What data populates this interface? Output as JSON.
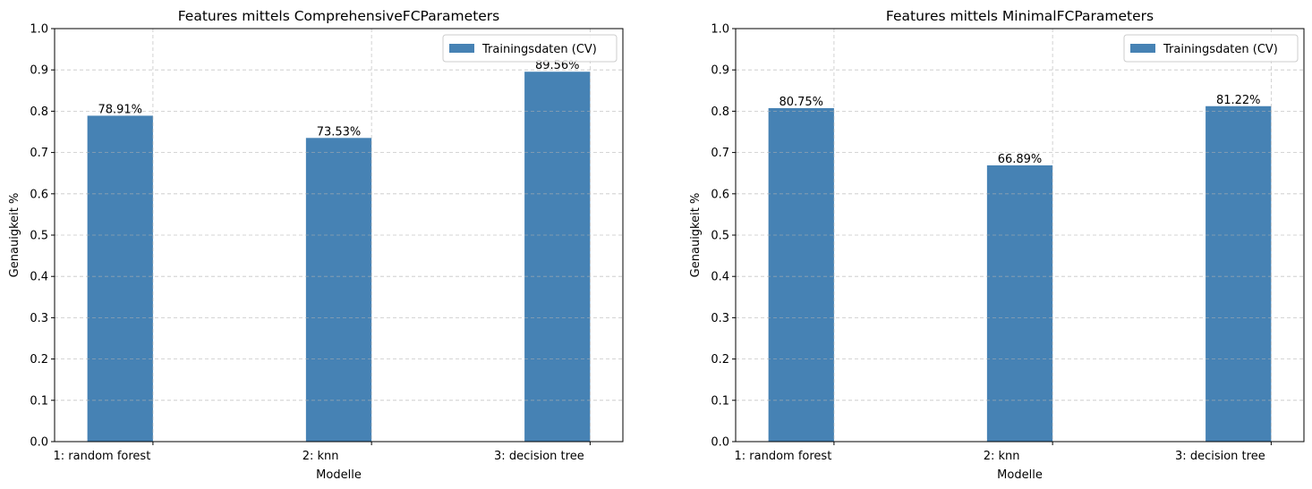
{
  "chart_data": [
    {
      "type": "bar",
      "title": "Features mittels ComprehensiveFCParameters",
      "xlabel": "Modelle",
      "ylabel": "Genauigkeit %",
      "categories": [
        "1: random forest",
        "2: knn",
        "3: decision tree"
      ],
      "series": [
        {
          "name": "Trainingsdaten (CV)",
          "values": [
            0.7891,
            0.7353,
            0.8956
          ],
          "color": "#4682b4"
        }
      ],
      "data_labels": [
        "78.91%",
        "73.53%",
        "89.56%"
      ],
      "ylim": [
        0,
        1.0
      ],
      "yticks": [
        "0.0",
        "0.1",
        "0.2",
        "0.3",
        "0.4",
        "0.5",
        "0.6",
        "0.7",
        "0.8",
        "0.9",
        "1.0"
      ],
      "grid": true,
      "legend_position": "top-right"
    },
    {
      "type": "bar",
      "title": "Features mittels MinimalFCParameters",
      "xlabel": "Modelle",
      "ylabel": "Genauigkeit %",
      "categories": [
        "1: random forest",
        "2: knn",
        "3: decision tree"
      ],
      "series": [
        {
          "name": "Trainingsdaten (CV)",
          "values": [
            0.8075,
            0.6689,
            0.8122
          ],
          "color": "#4682b4"
        }
      ],
      "data_labels": [
        "80.75%",
        "66.89%",
        "81.22%"
      ],
      "ylim": [
        0,
        1.0
      ],
      "yticks": [
        "0.0",
        "0.1",
        "0.2",
        "0.3",
        "0.4",
        "0.5",
        "0.6",
        "0.7",
        "0.8",
        "0.9",
        "1.0"
      ],
      "grid": true,
      "legend_position": "top-right"
    }
  ]
}
